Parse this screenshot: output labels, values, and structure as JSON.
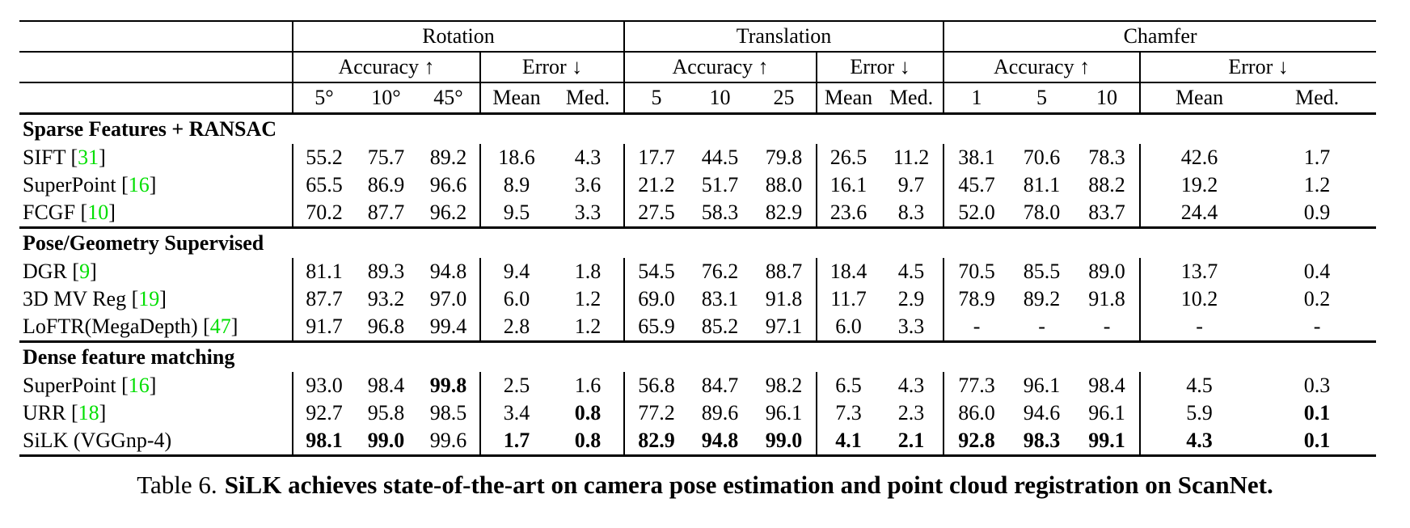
{
  "colors": {
    "citation_green": "#00df00"
  },
  "caption": {
    "label": "Table 6.",
    "text": "SiLK achieves state-of-the-art on camera pose estimation and point cloud registration on ScanNet."
  },
  "table": {
    "citation_format": {
      "open": " [",
      "close": "]"
    },
    "groups": [
      {
        "name": "Rotation",
        "accuracy_label": "Accuracy ↑",
        "error_label": "Error ↓",
        "accuracy_cols": [
          "5°",
          "10°",
          "45°"
        ],
        "error_cols": [
          "Mean",
          "Med."
        ]
      },
      {
        "name": "Translation",
        "accuracy_label": "Accuracy ↑",
        "error_label": "Error ↓",
        "accuracy_cols": [
          "5",
          "10",
          "25"
        ],
        "error_cols": [
          "Mean",
          "Med."
        ]
      },
      {
        "name": "Chamfer",
        "accuracy_label": "Accuracy ↑",
        "error_label": "Error ↓",
        "accuracy_cols": [
          "1",
          "5",
          "10"
        ],
        "error_cols": [
          "Mean",
          "Med."
        ]
      }
    ],
    "sections": [
      {
        "title": "Sparse Features + RANSAC",
        "rows": [
          {
            "method": "SIFT",
            "citation": "31",
            "values": [
              "55.2",
              "75.7",
              "89.2",
              "18.6",
              "4.3",
              "17.7",
              "44.5",
              "79.8",
              "26.5",
              "11.2",
              "38.1",
              "70.6",
              "78.3",
              "42.6",
              "1.7"
            ],
            "bold": []
          },
          {
            "method": "SuperPoint",
            "citation": "16",
            "values": [
              "65.5",
              "86.9",
              "96.6",
              "8.9",
              "3.6",
              "21.2",
              "51.7",
              "88.0",
              "16.1",
              "9.7",
              "45.7",
              "81.1",
              "88.2",
              "19.2",
              "1.2"
            ],
            "bold": []
          },
          {
            "method": "FCGF",
            "citation": "10",
            "values": [
              "70.2",
              "87.7",
              "96.2",
              "9.5",
              "3.3",
              "27.5",
              "58.3",
              "82.9",
              "23.6",
              "8.3",
              "52.0",
              "78.0",
              "83.7",
              "24.4",
              "0.9"
            ],
            "bold": []
          }
        ]
      },
      {
        "title": "Pose/Geometry Supervised",
        "rows": [
          {
            "method": "DGR",
            "citation": "9",
            "values": [
              "81.1",
              "89.3",
              "94.8",
              "9.4",
              "1.8",
              "54.5",
              "76.2",
              "88.7",
              "18.4",
              "4.5",
              "70.5",
              "85.5",
              "89.0",
              "13.7",
              "0.4"
            ],
            "bold": []
          },
          {
            "method": "3D MV Reg",
            "citation": "19",
            "values": [
              "87.7",
              "93.2",
              "97.0",
              "6.0",
              "1.2",
              "69.0",
              "83.1",
              "91.8",
              "11.7",
              "2.9",
              "78.9",
              "89.2",
              "91.8",
              "10.2",
              "0.2"
            ],
            "bold": []
          },
          {
            "method": "LoFTR(MegaDepth)",
            "citation": "47",
            "values": [
              "91.7",
              "96.8",
              "99.4",
              "2.8",
              "1.2",
              "65.9",
              "85.2",
              "97.1",
              "6.0",
              "3.3",
              "-",
              "-",
              "-",
              "-",
              "-"
            ],
            "bold": []
          }
        ]
      },
      {
        "title": "Dense feature matching",
        "rows": [
          {
            "method": "SuperPoint",
            "citation": "16",
            "values": [
              "93.0",
              "98.4",
              "99.8",
              "2.5",
              "1.6",
              "56.8",
              "84.7",
              "98.2",
              "6.5",
              "4.3",
              "77.3",
              "96.1",
              "98.4",
              "4.5",
              "0.3"
            ],
            "bold": [
              2
            ]
          },
          {
            "method": "URR",
            "citation": "18",
            "values": [
              "92.7",
              "95.8",
              "98.5",
              "3.4",
              "0.8",
              "77.2",
              "89.6",
              "96.1",
              "7.3",
              "2.3",
              "86.0",
              "94.6",
              "96.1",
              "5.9",
              "0.1"
            ],
            "bold": [
              4,
              14
            ]
          },
          {
            "method": "SiLK (VGGnp-4)",
            "citation": null,
            "values": [
              "98.1",
              "99.0",
              "99.6",
              "1.7",
              "0.8",
              "82.9",
              "94.8",
              "99.0",
              "4.1",
              "2.1",
              "92.8",
              "98.3",
              "99.1",
              "4.3",
              "0.1"
            ],
            "bold": [
              0,
              1,
              3,
              4,
              5,
              6,
              7,
              8,
              9,
              10,
              11,
              12,
              13,
              14
            ]
          }
        ]
      }
    ]
  }
}
